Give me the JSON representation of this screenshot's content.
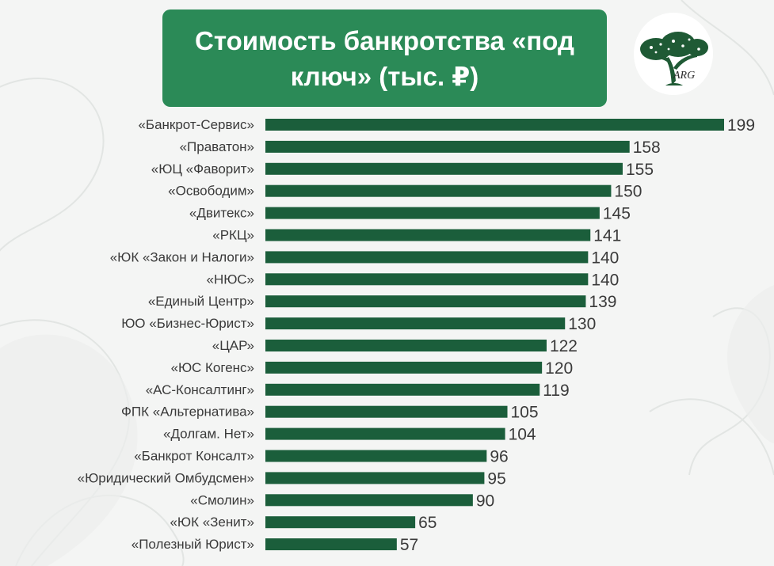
{
  "title": "Стоимость банкротства «под ключ» (тыс. ₽)",
  "logo": {
    "text": "ARG",
    "icon": "tree-logo-icon"
  },
  "colors": {
    "bar": "#1b5e3b",
    "title_bg": "#2b8a57",
    "text": "#3a3a3a"
  },
  "chart_data": {
    "type": "bar",
    "orientation": "horizontal",
    "title": "Стоимость банкротства «под ключ» (тыс. ₽)",
    "categories": [
      "«Банкрот-Сервис»",
      "«Праватон»",
      "«ЮЦ «Фаворит»",
      "«Освободим»",
      "«Двитекс»",
      "«РКЦ»",
      "«ЮК «Закон и Налоги»",
      "«НЮС»",
      "«Единый Центр»",
      "ЮО «Бизнес-Юрист»",
      "«ЦАР»",
      "«ЮС Когенс»",
      "«АС-Консалтинг»",
      "ФПК «Альтернатива»",
      "«Долгам. Нет»",
      "«Банкрот Консалт»",
      "«Юридический Омбудсмен»",
      "«Смолин»",
      "«ЮК «Зенит»",
      "«Полезный Юрист»"
    ],
    "values": [
      199,
      158,
      155,
      150,
      145,
      141,
      140,
      140,
      139,
      130,
      122,
      120,
      119,
      105,
      104,
      96,
      95,
      90,
      65,
      57
    ],
    "xlim": [
      0,
      199
    ],
    "grid": false,
    "data_labels": true
  }
}
